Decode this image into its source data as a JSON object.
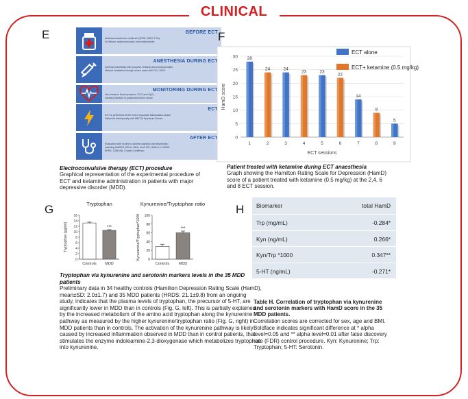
{
  "poster": {
    "section_title": "CLINICAL"
  },
  "panel_e": {
    "letter": "E",
    "steps": [
      {
        "heading": "BEFORE ECT",
        "icon": "medicine-bottle-icon",
        "lines": [
          "Antidepressants are continued (SSRI, SNRI, TCA).",
          "No lithium, anticonvulsivant, benzodiazepines"
        ]
      },
      {
        "heading": "ANESTHESIA DURING ECT",
        "icon": "syringe-icon",
        "lines": [
          "General anesthesia with propofol, fentanyl and succinylcholine",
          "Manual ventilation through a face mask with FiO₂ 100%"
        ]
      },
      {
        "heading": "MONITORING DURING ECT",
        "icon": "heart-monitor-icon",
        "lines": [
          "Non-invasive blood pressure, ECG and SpO₂.",
          "Dental protection is positioned before shock"
        ]
      },
      {
        "heading": "ECT",
        "icon": "lightning-icon",
        "lines": [
          "ECT is performed at the end of muscular fasciculation phase",
          "Delivered bitemporally with MECTA Spectrum Device"
        ]
      },
      {
        "heading": "AFTER ECT",
        "icon": "stethoscope-icon",
        "lines": [
          "Evaluation with scales to assess cognition and depression",
          "including MADRS, BDI-II, MINI, book SSI, HAM-A, C-ASSS,",
          "BPRS, CANTAB, Crowitz-Schiffman."
        ]
      }
    ],
    "caption_title": "Electroconvulsive therapy (ECT) procedure",
    "caption_lines": [
      "Graphical representation of the experimental procedure of",
      "ECT and ketamine administration in patients with major",
      "depressive disorder (MDD)."
    ]
  },
  "panel_f": {
    "letter": "F",
    "caption_title": "Patient treated with ketamine during ECT anaesthesia",
    "caption_lines": [
      "Graph showing the Hamilton Rating Scale for Depression (HamD)",
      "score of a patient treated with ketamine (0.5 mg/kg) at the 2,4, 6",
      "and 8 ECT session."
    ]
  },
  "panel_g": {
    "letter": "G",
    "caption_title_lines": [
      "Tryptophan via kynurenine and serotonin markers levels in the 35 MDD",
      "patients"
    ],
    "caption_lines": [
      "Preliminary data in 34 healthy controls (Hamilton Depression Rating Scale (HamD),",
      "mean±SD: 2.0±1.7) and 35 MDD patients (HRDS: 21.1±9.8) from an ongoing",
      "study, indicates that the plasma levels of tryptophan, the precursor of 5-HT, are",
      "significantly lower in MDD than in controls (Fig. G, left). This is partially explained",
      "by the increased metabolism of the amino acid tryptophan along the kynurenine",
      "pathway as measured by the higher kynurenine/tryptophan ratio (Fig. G, right) in",
      "MDD patients than in controls. The activation of the kynurenine pathway is likely",
      "caused by increased inflammation observed in MDD than in control patients, that",
      "stimulates the enzyme indoleamine-2,3-dioxygenase which metabolizes tryptophan",
      "into kynurenine."
    ]
  },
  "panel_h": {
    "letter": "H",
    "header": {
      "col1": "Biomarker",
      "col2": "total HamD"
    },
    "rows": [
      {
        "biomarker": "Trp (mg/mL)",
        "value": "-0.284*"
      },
      {
        "biomarker": "Kyn (ng/mL)",
        "value": "0.266*"
      },
      {
        "biomarker": "Kyn/Trp *1000",
        "value": "0.347**"
      },
      {
        "biomarker": "5-HT (ng/mL)",
        "value": "-0.271*"
      }
    ],
    "caption_title_lines": [
      "Table H. Correlation of tryptophan via kynurenine",
      "and serotonin markers with HamD score in the 35",
      "MDD patients."
    ],
    "caption_lines": [
      "Correlation scores are corrected for sex, age and BMI.",
      "Boldface indicates significant difference at * alpha",
      "level=0.05 and ** alpha level=0.01 after false discovery",
      "rate (FDR) control procedure. Kyn: Kynurenine; Trp:",
      "Tryptophan; 5-HT: Serotonin."
    ]
  },
  "chart_data": [
    {
      "id": "hamd-sessions",
      "type": "bar",
      "title": "",
      "xlabel": "ECT sessions",
      "ylabel": "HamD score",
      "ylim": [
        0,
        30
      ],
      "yticks": [
        0,
        5,
        10,
        15,
        20,
        25,
        30
      ],
      "legend_position": "top-right",
      "categories": [
        "1",
        "2",
        "3",
        "4",
        "5",
        "6",
        "7",
        "8",
        "9"
      ],
      "values": [
        28,
        24,
        24,
        23,
        23,
        22,
        14,
        9,
        5
      ],
      "series": [
        {
          "name": "ECT alone",
          "color": "#3f74c8",
          "sessions": [
            "1",
            "3",
            "5",
            "7",
            "9"
          ]
        },
        {
          "name": "ECT+ ketamine (0.5 mg/kg)",
          "color": "#e0782b",
          "sessions": [
            "2",
            "4",
            "6",
            "8"
          ]
        }
      ]
    },
    {
      "id": "tryptophan",
      "type": "bar",
      "title": "Tryptophan",
      "ylabel": "Tryptophan (μg/ml)",
      "ylim": [
        0,
        16
      ],
      "yticks": [
        0,
        2,
        4,
        6,
        8,
        10,
        12,
        14,
        16
      ],
      "categories": [
        "Controls",
        "MDD"
      ],
      "values": [
        13.2,
        10.5
      ],
      "errors": [
        0.3,
        0.25
      ],
      "colors": [
        "#ffffff",
        "#8a8480"
      ],
      "significance": [
        "",
        "***"
      ]
    },
    {
      "id": "kyn-trp-ratio",
      "type": "bar",
      "title": "Kynurenine/Tryptophan ratio",
      "ylabel": "Kynurenine/Tryptophan*1000",
      "ylim": [
        0,
        100
      ],
      "yticks": [
        0,
        20,
        40,
        60,
        80,
        100
      ],
      "categories": [
        "Controls",
        "MDD"
      ],
      "values": [
        29,
        60
      ],
      "errors": [
        5,
        4
      ],
      "colors": [
        "#ffffff",
        "#8a8480"
      ],
      "significance": [
        "",
        "***"
      ]
    }
  ]
}
